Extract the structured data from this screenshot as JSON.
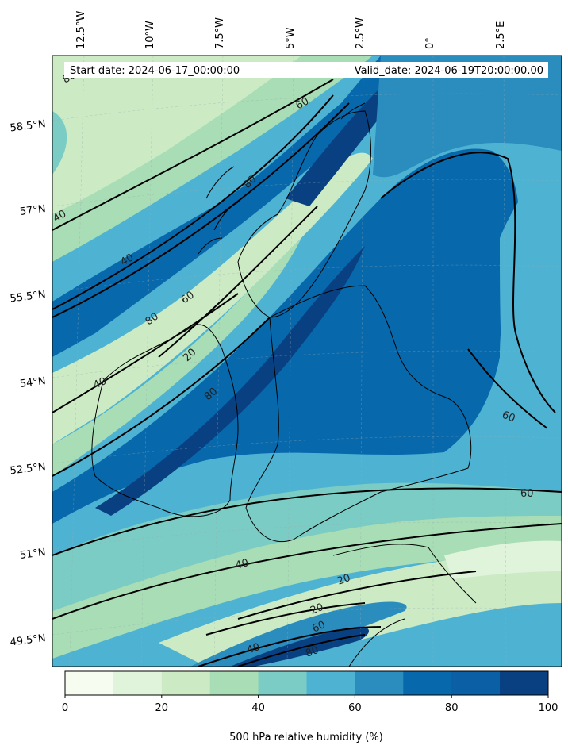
{
  "header": {
    "start_date": "Start date: 2024-06-17_00:00:00",
    "valid_date": "Valid_date: 2024-06-19T20:00:00.00"
  },
  "map": {
    "longitude_labels": [
      "12.5°W",
      "10°W",
      "7.5°W",
      "5°W",
      "2.5°W",
      "0°",
      "2.5°E"
    ],
    "latitude_labels": [
      "58.5°N",
      "57°N",
      "55.5°N",
      "54°N",
      "52.5°N",
      "51°N",
      "49.5°N"
    ],
    "contour_labels": [
      "80",
      "60",
      "40",
      "40",
      "60",
      "80",
      "20",
      "40",
      "80",
      "60",
      "60",
      "40",
      "20",
      "20",
      "60",
      "40",
      "80",
      "80"
    ]
  },
  "colorbar": {
    "title": "500 hPa relative humidity (%)",
    "ticks": [
      "0",
      "20",
      "40",
      "60",
      "80",
      "100"
    ],
    "colors": [
      "#f7fcf0",
      "#e0f3db",
      "#ccebc5",
      "#a8ddb5",
      "#7bccc4",
      "#4eb3d3",
      "#2b8cbe",
      "#0868ac",
      "#0b5fa5",
      "#084081"
    ]
  }
}
